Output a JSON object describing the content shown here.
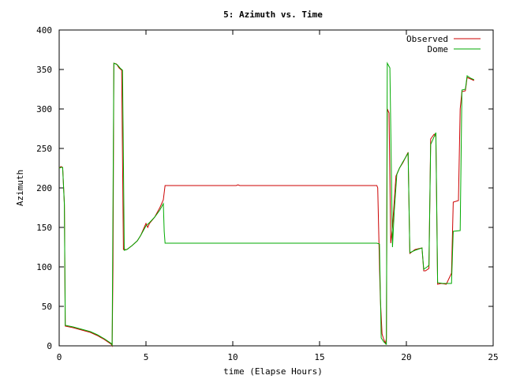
{
  "chart_data": {
    "type": "line",
    "title": "5: Azimuth vs. Time",
    "xlabel": "time (Elapse Hours)",
    "ylabel": "Azimuth",
    "xlim": [
      0,
      25
    ],
    "ylim": [
      0,
      400
    ],
    "xticks": [
      0,
      5,
      10,
      15,
      20,
      25
    ],
    "yticks": [
      0,
      50,
      100,
      150,
      200,
      250,
      300,
      350,
      400
    ],
    "grid": false,
    "legend_position": "top-right",
    "series": [
      {
        "name": "Observed",
        "color": "#cc0000",
        "points": [
          [
            0,
            225
          ],
          [
            0.1,
            227
          ],
          [
            0.2,
            226
          ],
          [
            0.3,
            180
          ],
          [
            0.35,
            25
          ],
          [
            0.8,
            23
          ],
          [
            1.3,
            20
          ],
          [
            1.8,
            17
          ],
          [
            2.2,
            13
          ],
          [
            2.6,
            8
          ],
          [
            3.0,
            2
          ],
          [
            3.05,
            0
          ],
          [
            3.1,
            100
          ],
          [
            3.15,
            358
          ],
          [
            3.3,
            357
          ],
          [
            3.45,
            352
          ],
          [
            3.6,
            349
          ],
          [
            3.7,
            122
          ],
          [
            3.9,
            122
          ],
          [
            4.2,
            127
          ],
          [
            4.5,
            133
          ],
          [
            4.7,
            140
          ],
          [
            4.9,
            150
          ],
          [
            5.0,
            155
          ],
          [
            5.1,
            150
          ],
          [
            5.2,
            155
          ],
          [
            5.5,
            163
          ],
          [
            5.8,
            175
          ],
          [
            6.0,
            185
          ],
          [
            6.1,
            203
          ],
          [
            10.2,
            203
          ],
          [
            10.3,
            204
          ],
          [
            10.4,
            203
          ],
          [
            18.3,
            203
          ],
          [
            18.35,
            200
          ],
          [
            18.45,
            103
          ],
          [
            18.5,
            60
          ],
          [
            18.6,
            15
          ],
          [
            18.7,
            8
          ],
          [
            18.8,
            3
          ],
          [
            18.85,
            10
          ],
          [
            18.9,
            300
          ],
          [
            19.0,
            295
          ],
          [
            19.1,
            130
          ],
          [
            19.2,
            150
          ],
          [
            19.4,
            215
          ],
          [
            19.6,
            225
          ],
          [
            19.8,
            232
          ],
          [
            20.1,
            245
          ],
          [
            20.2,
            117
          ],
          [
            20.5,
            122
          ],
          [
            20.9,
            124
          ],
          [
            21.0,
            95
          ],
          [
            21.1,
            95
          ],
          [
            21.3,
            98
          ],
          [
            21.4,
            262
          ],
          [
            21.6,
            268
          ],
          [
            21.7,
            265
          ],
          [
            21.8,
            78
          ],
          [
            22.0,
            79
          ],
          [
            22.3,
            78
          ],
          [
            22.6,
            92
          ],
          [
            22.7,
            182
          ],
          [
            23.0,
            184
          ],
          [
            23.1,
            300
          ],
          [
            23.2,
            322
          ],
          [
            23.4,
            323
          ],
          [
            23.5,
            340
          ],
          [
            23.7,
            338
          ],
          [
            23.9,
            336
          ]
        ]
      },
      {
        "name": "Dome",
        "color": "#00aa00",
        "points": [
          [
            0,
            225
          ],
          [
            0.1,
            226
          ],
          [
            0.2,
            226
          ],
          [
            0.3,
            178
          ],
          [
            0.35,
            26
          ],
          [
            0.8,
            24
          ],
          [
            1.3,
            21
          ],
          [
            1.8,
            18
          ],
          [
            2.2,
            14
          ],
          [
            2.6,
            9
          ],
          [
            3.0,
            3
          ],
          [
            3.05,
            1
          ],
          [
            3.15,
            358
          ],
          [
            3.35,
            356
          ],
          [
            3.5,
            352
          ],
          [
            3.65,
            349
          ],
          [
            3.75,
            121
          ],
          [
            3.9,
            122
          ],
          [
            4.2,
            127
          ],
          [
            4.5,
            133
          ],
          [
            4.7,
            140
          ],
          [
            4.9,
            148
          ],
          [
            5.0,
            152
          ],
          [
            5.2,
            156
          ],
          [
            5.5,
            163
          ],
          [
            5.8,
            172
          ],
          [
            6.0,
            180
          ],
          [
            6.05,
            145
          ],
          [
            6.1,
            130
          ],
          [
            18.3,
            130
          ],
          [
            18.45,
            129
          ],
          [
            18.55,
            10
          ],
          [
            18.7,
            5
          ],
          [
            18.85,
            2
          ],
          [
            18.9,
            358
          ],
          [
            19.05,
            352
          ],
          [
            19.2,
            125
          ],
          [
            19.3,
            170
          ],
          [
            19.45,
            217
          ],
          [
            19.6,
            225
          ],
          [
            19.8,
            233
          ],
          [
            20.1,
            244
          ],
          [
            20.2,
            118
          ],
          [
            20.5,
            121
          ],
          [
            20.9,
            124
          ],
          [
            21.0,
            97
          ],
          [
            21.2,
            100
          ],
          [
            21.3,
            102
          ],
          [
            21.4,
            255
          ],
          [
            21.6,
            265
          ],
          [
            21.7,
            270
          ],
          [
            21.8,
            80
          ],
          [
            22.1,
            79
          ],
          [
            22.6,
            79
          ],
          [
            22.7,
            145
          ],
          [
            23.1,
            146
          ],
          [
            23.2,
            324
          ],
          [
            23.4,
            325
          ],
          [
            23.5,
            342
          ],
          [
            23.7,
            339
          ],
          [
            23.9,
            337
          ]
        ]
      }
    ]
  }
}
